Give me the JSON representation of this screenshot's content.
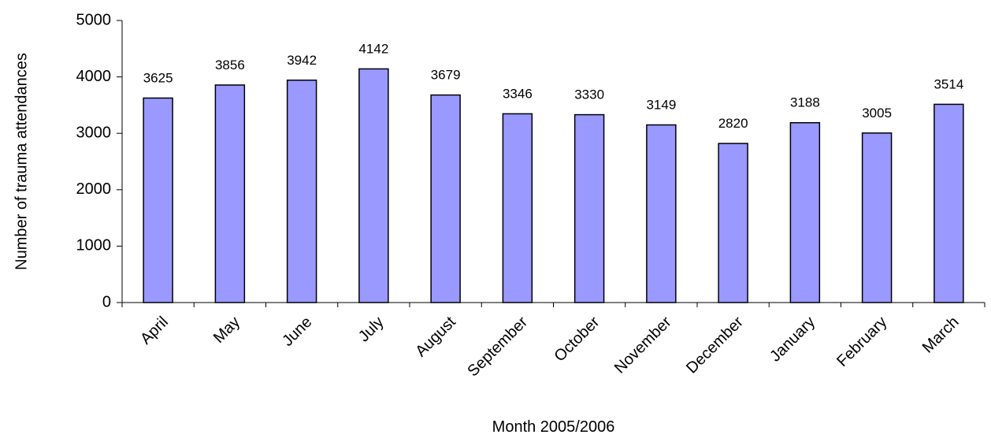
{
  "chart_data": {
    "type": "bar",
    "title": "",
    "xlabel": "Month 2005/2006",
    "ylabel": "Number of trauma attendances",
    "categories": [
      "April",
      "May",
      "June",
      "July",
      "August",
      "September",
      "October",
      "November",
      "December",
      "January",
      "February",
      "March"
    ],
    "values": [
      3625,
      3856,
      3942,
      4142,
      3679,
      3346,
      3330,
      3149,
      2820,
      3188,
      3005,
      3514
    ],
    "ylim": [
      0,
      5000
    ],
    "yticks": [
      0,
      1000,
      2000,
      3000,
      4000,
      5000
    ],
    "grid": false,
    "legend": "none",
    "bar_color": "#9999ff",
    "bar_edge_color": "#000000"
  }
}
